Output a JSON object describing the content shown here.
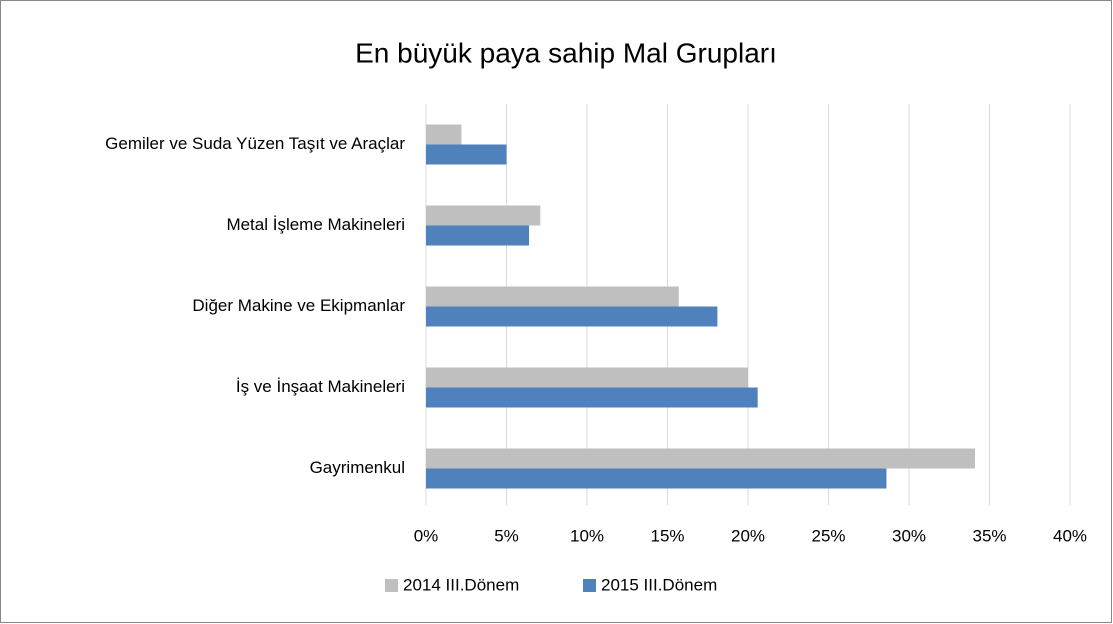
{
  "chart_data": {
    "type": "hbar",
    "title": "En büyük paya sahip Mal Grupları",
    "categories": [
      "Gemiler ve Suda Yüzen Taşıt ve Araçlar",
      "Metal İşleme Makineleri",
      "Diğer Makine ve Ekipmanlar",
      "İş ve İnşaat Makineleri",
      "Gayrimenkul"
    ],
    "series": [
      {
        "name": "2014 III.Dönem",
        "color": "#bfbfbf",
        "values": [
          2.2,
          7.1,
          15.7,
          20.0,
          34.1
        ]
      },
      {
        "name": "2015 III.Dönem",
        "color": "#4f81bd",
        "values": [
          5.0,
          6.4,
          18.1,
          20.6,
          28.6
        ]
      }
    ],
    "xlim": [
      0,
      40
    ],
    "xticks": [
      {
        "value": 0,
        "label": "0%"
      },
      {
        "value": 5,
        "label": "5%"
      },
      {
        "value": 10,
        "label": "10%"
      },
      {
        "value": 15,
        "label": "15%"
      },
      {
        "value": 20,
        "label": "20%"
      },
      {
        "value": 25,
        "label": "25%"
      },
      {
        "value": 30,
        "label": "30%"
      },
      {
        "value": 35,
        "label": "35%"
      },
      {
        "value": 40,
        "label": "40%"
      }
    ],
    "grid": true,
    "legend": "bottom"
  }
}
